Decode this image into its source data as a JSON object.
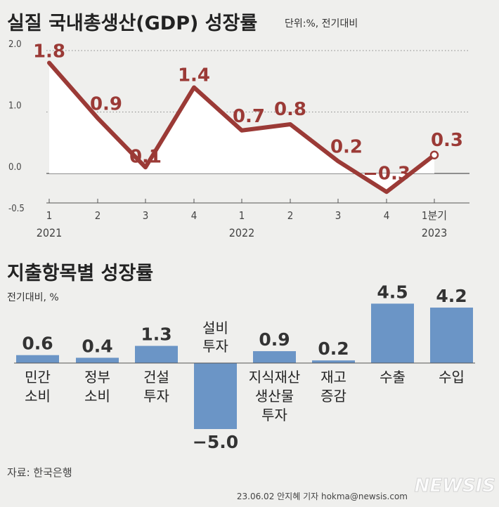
{
  "colors": {
    "line": "#9b3a36",
    "bar": "#6b95c6",
    "area": "#ffffff",
    "background": "#efefed"
  },
  "chart_data": [
    {
      "type": "line",
      "title": "실질 국내총생산(GDP) 성장률",
      "unit": "단위:%, 전기대비",
      "x": [
        "1",
        "2",
        "3",
        "4",
        "1",
        "2",
        "3",
        "4",
        "1분기"
      ],
      "year_labels": [
        "2021",
        "2022",
        "2023"
      ],
      "y_ticks": [
        "2.0",
        "1.0",
        "0.0",
        "-0.5"
      ],
      "series": [
        {
          "name": "GDP 성장률",
          "values": [
            1.8,
            0.9,
            0.1,
            1.4,
            0.7,
            0.8,
            0.2,
            -0.3,
            0.3
          ]
        }
      ],
      "value_labels": [
        "1.8",
        "0.9",
        "0.1",
        "1.4",
        "0.7",
        "0.8",
        "0.2",
        "−0.3",
        "0.3"
      ],
      "ylim": [
        -0.5,
        2.0
      ]
    },
    {
      "type": "bar",
      "title": "지출항목별 성장률",
      "unit": "전기대비, %",
      "categories": [
        [
          "민간",
          "소비"
        ],
        [
          "정부",
          "소비"
        ],
        [
          "건설",
          "투자"
        ],
        [
          "설비",
          "투자"
        ],
        [
          "지식재산",
          "생산물",
          "투자"
        ],
        [
          "재고",
          "증감"
        ],
        [
          "수출"
        ],
        [
          "수입"
        ]
      ],
      "values": [
        0.6,
        0.4,
        1.3,
        -5.0,
        0.9,
        0.2,
        4.5,
        4.2
      ],
      "value_labels": [
        "0.6",
        "0.4",
        "1.3",
        "−5.0",
        "0.9",
        "0.2",
        "4.5",
        "4.2"
      ]
    }
  ],
  "source": "자료: 한국은행",
  "credit": "23.06.02 안지혜 기자 hokma@newsis.com",
  "logo": "NEWSIS"
}
